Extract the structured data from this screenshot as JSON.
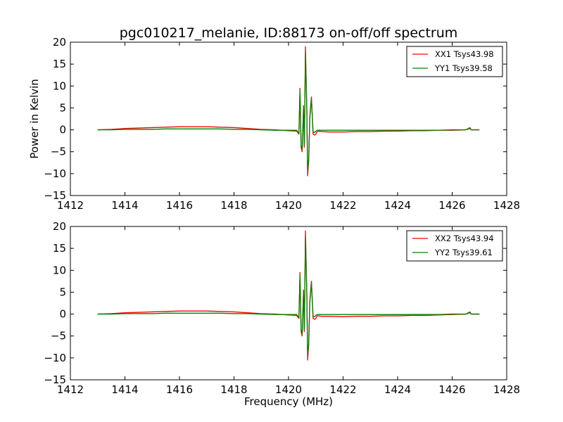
{
  "figure": {
    "title": "pgc010217_melanie, ID:88173 on-off/off spectrum",
    "xlabel": "Frequency (MHz)",
    "ylabel": "Power in Kelvin"
  },
  "chart_data": [
    {
      "type": "line",
      "title": "pgc010217_melanie, ID:88173 on-off/off spectrum",
      "xlabel": "",
      "ylabel": "Power in Kelvin",
      "xlim": [
        1412,
        1428
      ],
      "ylim": [
        -15,
        20
      ],
      "xticks": [
        "1412",
        "1414",
        "1416",
        "1418",
        "1420",
        "1422",
        "1424",
        "1426",
        "1428"
      ],
      "yticks": [
        "−15",
        "−10",
        "−5",
        "0",
        "5",
        "10",
        "15",
        "20"
      ],
      "legend_position": "top-right",
      "grid": false,
      "series": [
        {
          "name": "XX1 Tsys43.98",
          "color": "#ff0000",
          "x": [
            1413.0,
            1413.5,
            1414.0,
            1414.5,
            1415.0,
            1415.5,
            1416.0,
            1416.5,
            1417.0,
            1417.5,
            1418.0,
            1418.5,
            1419.0,
            1419.5,
            1420.0,
            1420.3,
            1420.38,
            1420.42,
            1420.46,
            1420.5,
            1420.55,
            1420.58,
            1420.62,
            1420.67,
            1420.7,
            1420.74,
            1420.78,
            1420.84,
            1420.9,
            1420.96,
            1421.0,
            1421.05,
            1421.1,
            1421.2,
            1421.5,
            1422.0,
            1422.5,
            1423.0,
            1423.5,
            1424.0,
            1424.5,
            1425.0,
            1425.5,
            1426.0,
            1426.5,
            1426.65,
            1426.7,
            1427.0
          ],
          "y": [
            0.0,
            0.1,
            0.3,
            0.4,
            0.5,
            0.6,
            0.7,
            0.7,
            0.7,
            0.6,
            0.5,
            0.3,
            0.1,
            0.0,
            -0.2,
            -0.3,
            -1.0,
            9.5,
            -4.0,
            -5.0,
            5.5,
            -4.0,
            19.0,
            5.0,
            -10.5,
            -7.0,
            3.0,
            7.5,
            -1.0,
            -1.2,
            -1.0,
            -0.4,
            -0.3,
            -0.4,
            -0.5,
            -0.5,
            -0.4,
            -0.4,
            -0.3,
            -0.3,
            -0.2,
            -0.2,
            -0.1,
            -0.1,
            0.0,
            0.3,
            0.0,
            0.0
          ]
        },
        {
          "name": "YY1 Tsys39.58",
          "color": "#008000",
          "x": [
            1413.0,
            1413.5,
            1414.0,
            1414.5,
            1415.0,
            1415.5,
            1416.0,
            1416.5,
            1417.0,
            1417.5,
            1418.0,
            1418.5,
            1419.0,
            1419.5,
            1420.0,
            1420.3,
            1420.38,
            1420.42,
            1420.46,
            1420.5,
            1420.55,
            1420.58,
            1420.62,
            1420.67,
            1420.7,
            1420.74,
            1420.78,
            1420.84,
            1420.9,
            1420.96,
            1421.0,
            1421.05,
            1421.1,
            1421.2,
            1421.5,
            1422.0,
            1422.5,
            1423.0,
            1423.5,
            1424.0,
            1424.5,
            1425.0,
            1425.5,
            1426.0,
            1426.5,
            1426.65,
            1426.7,
            1427.0
          ],
          "y": [
            0.0,
            0.0,
            0.1,
            0.1,
            0.1,
            0.2,
            0.2,
            0.2,
            0.2,
            0.2,
            0.1,
            0.1,
            0.0,
            -0.1,
            -0.1,
            -0.1,
            -0.8,
            9.0,
            -3.5,
            -4.5,
            5.0,
            -3.5,
            17.5,
            4.5,
            -9.5,
            -6.5,
            2.5,
            7.0,
            -0.5,
            -0.6,
            -0.3,
            -0.1,
            -0.1,
            -0.1,
            -0.1,
            -0.1,
            -0.1,
            -0.1,
            -0.1,
            -0.1,
            -0.1,
            -0.1,
            -0.1,
            0.0,
            0.0,
            0.5,
            0.0,
            0.0
          ]
        }
      ]
    },
    {
      "type": "line",
      "title": "",
      "xlabel": "Frequency (MHz)",
      "ylabel": "",
      "xlim": [
        1412,
        1428
      ],
      "ylim": [
        -15,
        20
      ],
      "xticks": [
        "1412",
        "1414",
        "1416",
        "1418",
        "1420",
        "1422",
        "1424",
        "1426",
        "1428"
      ],
      "yticks": [
        "−15",
        "−10",
        "−5",
        "0",
        "5",
        "10",
        "15",
        "20"
      ],
      "legend_position": "top-right",
      "grid": false,
      "series": [
        {
          "name": "XX2 Tsys43.94",
          "color": "#ff0000",
          "x": [
            1413.0,
            1413.5,
            1414.0,
            1414.5,
            1415.0,
            1415.5,
            1416.0,
            1416.5,
            1417.0,
            1417.5,
            1418.0,
            1418.5,
            1419.0,
            1419.5,
            1420.0,
            1420.3,
            1420.38,
            1420.42,
            1420.46,
            1420.5,
            1420.55,
            1420.58,
            1420.62,
            1420.67,
            1420.7,
            1420.74,
            1420.78,
            1420.84,
            1420.9,
            1420.96,
            1421.0,
            1421.05,
            1421.1,
            1421.2,
            1421.5,
            1422.0,
            1422.5,
            1423.0,
            1423.5,
            1424.0,
            1424.5,
            1425.0,
            1425.5,
            1426.0,
            1426.5,
            1426.65,
            1426.7,
            1427.0
          ],
          "y": [
            0.0,
            0.1,
            0.3,
            0.4,
            0.5,
            0.6,
            0.7,
            0.7,
            0.7,
            0.6,
            0.5,
            0.3,
            0.1,
            0.0,
            -0.2,
            -0.3,
            -1.0,
            9.5,
            -4.0,
            -5.0,
            5.5,
            -4.0,
            19.0,
            5.0,
            -10.5,
            -7.0,
            3.0,
            7.5,
            -1.0,
            -1.2,
            -1.0,
            -0.4,
            -0.4,
            -0.5,
            -0.5,
            -0.6,
            -0.5,
            -0.5,
            -0.4,
            -0.4,
            -0.3,
            -0.3,
            -0.2,
            -0.1,
            0.0,
            0.3,
            0.0,
            0.0
          ]
        },
        {
          "name": "YY2 Tsys39.61",
          "color": "#008000",
          "x": [
            1413.0,
            1413.5,
            1414.0,
            1414.5,
            1415.0,
            1415.5,
            1416.0,
            1416.5,
            1417.0,
            1417.5,
            1418.0,
            1418.5,
            1419.0,
            1419.5,
            1420.0,
            1420.3,
            1420.38,
            1420.42,
            1420.46,
            1420.5,
            1420.55,
            1420.58,
            1420.62,
            1420.67,
            1420.7,
            1420.74,
            1420.78,
            1420.84,
            1420.9,
            1420.96,
            1421.0,
            1421.05,
            1421.1,
            1421.2,
            1421.5,
            1422.0,
            1422.5,
            1423.0,
            1423.5,
            1424.0,
            1424.5,
            1425.0,
            1425.5,
            1426.0,
            1426.5,
            1426.65,
            1426.7,
            1427.0
          ],
          "y": [
            0.0,
            0.0,
            0.1,
            0.1,
            0.1,
            0.2,
            0.2,
            0.2,
            0.2,
            0.2,
            0.1,
            0.1,
            0.0,
            -0.1,
            -0.1,
            -0.1,
            -0.8,
            9.0,
            -3.5,
            -4.5,
            5.0,
            -3.5,
            17.5,
            4.5,
            -9.5,
            -6.5,
            2.5,
            7.0,
            -0.5,
            -0.6,
            -0.3,
            -0.1,
            -0.1,
            -0.1,
            -0.1,
            -0.1,
            -0.1,
            -0.1,
            -0.1,
            -0.1,
            -0.1,
            -0.1,
            -0.1,
            0.0,
            0.0,
            0.5,
            0.0,
            0.0
          ]
        }
      ]
    }
  ]
}
